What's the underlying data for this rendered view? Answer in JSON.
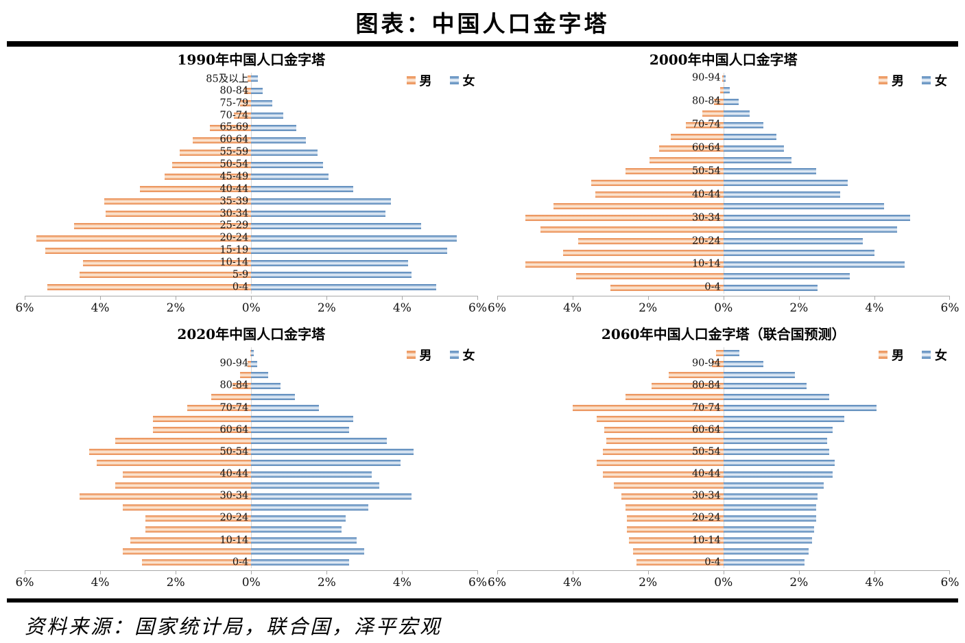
{
  "page": {
    "title": "图表：中国人口金字塔",
    "source": "资料来源：国家统计局，联合国，泽平宏观"
  },
  "colors": {
    "male_accent": "#ED9C5F",
    "female_accent": "#5B88BC",
    "axis_line": "#A8A8A8",
    "divider": "#000000"
  },
  "chart_data": [
    {
      "type": "bar",
      "subtype": "population-pyramid",
      "title": "1990年中国人口金字塔",
      "xlim": 6,
      "x_ticks": [
        "6%",
        "4%",
        "2%",
        "0%",
        "2%",
        "4%",
        "6%"
      ],
      "legend_position": "top-right",
      "series": [
        {
          "name": "男"
        },
        {
          "name": "女"
        }
      ],
      "rows": [
        {
          "label": "85及以上",
          "male": 0.1,
          "female": 0.18
        },
        {
          "label": "80-84",
          "male": 0.18,
          "female": 0.3
        },
        {
          "label": "75-79",
          "male": 0.3,
          "female": 0.55
        },
        {
          "label": "70-74",
          "male": 0.45,
          "female": 0.85
        },
        {
          "label": "65-69",
          "male": 1.1,
          "female": 1.2
        },
        {
          "label": "60-64",
          "male": 1.55,
          "female": 1.45
        },
        {
          "label": "55-59",
          "male": 1.9,
          "female": 1.75
        },
        {
          "label": "50-54",
          "male": 2.1,
          "female": 1.9
        },
        {
          "label": "45-49",
          "male": 2.3,
          "female": 2.05
        },
        {
          "label": "40-44",
          "male": 2.95,
          "female": 2.7
        },
        {
          "label": "35-39",
          "male": 3.9,
          "female": 3.7
        },
        {
          "label": "30-34",
          "male": 3.85,
          "female": 3.55
        },
        {
          "label": "25-29",
          "male": 4.7,
          "female": 4.5
        },
        {
          "label": "20-24",
          "male": 5.7,
          "female": 5.45
        },
        {
          "label": "15-19",
          "male": 5.45,
          "female": 5.2
        },
        {
          "label": "10-14",
          "male": 4.45,
          "female": 4.15
        },
        {
          "label": "5-9",
          "male": 4.55,
          "female": 4.25
        },
        {
          "label": "0-4",
          "male": 5.4,
          "female": 4.9
        }
      ]
    },
    {
      "type": "bar",
      "subtype": "population-pyramid",
      "title": "2000年中国人口金字塔",
      "xlim": 6,
      "x_ticks": [
        "6%",
        "4%",
        "2%",
        "0%",
        "2%",
        "4%",
        "6%"
      ],
      "legend_position": "top-right",
      "series": [
        {
          "name": "男"
        },
        {
          "name": "女"
        }
      ],
      "rows": [
        {
          "label": "90-94",
          "male": 0.03,
          "female": 0.05
        },
        {
          "label": "",
          "male": 0.08,
          "female": 0.17
        },
        {
          "label": "80-84",
          "male": 0.25,
          "female": 0.4
        },
        {
          "label": "",
          "male": 0.55,
          "female": 0.7
        },
        {
          "label": "70-74",
          "male": 1.0,
          "female": 1.05
        },
        {
          "label": "",
          "male": 1.4,
          "female": 1.4
        },
        {
          "label": "60-64",
          "male": 1.7,
          "female": 1.6
        },
        {
          "label": "",
          "male": 1.95,
          "female": 1.8
        },
        {
          "label": "50-54",
          "male": 2.6,
          "female": 2.45
        },
        {
          "label": "",
          "male": 3.5,
          "female": 3.3
        },
        {
          "label": "40-44",
          "male": 3.4,
          "female": 3.1
        },
        {
          "label": "",
          "male": 4.5,
          "female": 4.25
        },
        {
          "label": "30-34",
          "male": 5.25,
          "female": 4.95
        },
        {
          "label": "",
          "male": 4.85,
          "female": 4.6
        },
        {
          "label": "20-24",
          "male": 3.85,
          "female": 3.7
        },
        {
          "label": "",
          "male": 4.25,
          "female": 4.0
        },
        {
          "label": "10-14",
          "male": 5.25,
          "female": 4.8
        },
        {
          "label": "",
          "male": 3.9,
          "female": 3.35
        },
        {
          "label": "0-4",
          "male": 3.0,
          "female": 2.5
        }
      ]
    },
    {
      "type": "bar",
      "subtype": "population-pyramid",
      "title": "2020年中国人口金字塔",
      "xlim": 6,
      "x_ticks": [
        "6%",
        "4%",
        "2%",
        "0%",
        "2%",
        "4%",
        "6%"
      ],
      "legend_position": "top-right",
      "series": [
        {
          "name": "男"
        },
        {
          "name": "女"
        }
      ],
      "rows": [
        {
          "label": "",
          "male": 0.02,
          "female": 0.07
        },
        {
          "label": "90-94",
          "male": 0.1,
          "female": 0.16
        },
        {
          "label": "",
          "male": 0.3,
          "female": 0.45
        },
        {
          "label": "80-84",
          "male": 0.5,
          "female": 0.78
        },
        {
          "label": "",
          "male": 1.05,
          "female": 1.15
        },
        {
          "label": "70-74",
          "male": 1.7,
          "female": 1.8
        },
        {
          "label": "",
          "male": 2.6,
          "female": 2.7
        },
        {
          "label": "60-64",
          "male": 2.6,
          "female": 2.6
        },
        {
          "label": "",
          "male": 3.6,
          "female": 3.6
        },
        {
          "label": "50-54",
          "male": 4.3,
          "female": 4.3
        },
        {
          "label": "",
          "male": 4.1,
          "female": 3.95
        },
        {
          "label": "40-44",
          "male": 3.4,
          "female": 3.2
        },
        {
          "label": "",
          "male": 3.6,
          "female": 3.4
        },
        {
          "label": "30-34",
          "male": 4.55,
          "female": 4.25
        },
        {
          "label": "",
          "male": 3.4,
          "female": 3.1
        },
        {
          "label": "20-24",
          "male": 2.8,
          "female": 2.5
        },
        {
          "label": "",
          "male": 2.8,
          "female": 2.4
        },
        {
          "label": "10-14",
          "male": 3.2,
          "female": 2.8
        },
        {
          "label": "",
          "male": 3.4,
          "female": 3.0
        },
        {
          "label": "0-4",
          "male": 2.9,
          "female": 2.6
        }
      ]
    },
    {
      "type": "bar",
      "subtype": "population-pyramid",
      "title": "2060年中国人口金字塔（联合国预测）",
      "xlim": 6,
      "x_ticks": [
        "6%",
        "4%",
        "2%",
        "0%",
        "2%",
        "4%",
        "6%"
      ],
      "legend_position": "top-right",
      "series": [
        {
          "name": "男"
        },
        {
          "name": "女"
        }
      ],
      "rows": [
        {
          "label": "",
          "male": 0.2,
          "female": 0.42
        },
        {
          "label": "90-94",
          "male": 0.3,
          "female": 1.05
        },
        {
          "label": "",
          "male": 1.45,
          "female": 1.9
        },
        {
          "label": "80-84",
          "male": 1.9,
          "female": 2.2
        },
        {
          "label": "",
          "male": 2.6,
          "female": 2.8
        },
        {
          "label": "70-74",
          "male": 4.0,
          "female": 4.05
        },
        {
          "label": "",
          "male": 3.35,
          "female": 3.2
        },
        {
          "label": "60-64",
          "male": 3.15,
          "female": 2.9
        },
        {
          "label": "",
          "male": 3.1,
          "female": 2.75
        },
        {
          "label": "50-54",
          "male": 3.2,
          "female": 2.8
        },
        {
          "label": "",
          "male": 3.35,
          "female": 2.95
        },
        {
          "label": "40-44",
          "male": 3.2,
          "female": 2.9
        },
        {
          "label": "",
          "male": 2.9,
          "female": 2.65
        },
        {
          "label": "30-34",
          "male": 2.7,
          "female": 2.5
        },
        {
          "label": "",
          "male": 2.6,
          "female": 2.45
        },
        {
          "label": "20-24",
          "male": 2.55,
          "female": 2.45
        },
        {
          "label": "",
          "male": 2.55,
          "female": 2.4
        },
        {
          "label": "10-14",
          "male": 2.5,
          "female": 2.35
        },
        {
          "label": "",
          "male": 2.4,
          "female": 2.25
        },
        {
          "label": "0-4",
          "male": 2.3,
          "female": 2.15
        }
      ]
    }
  ]
}
